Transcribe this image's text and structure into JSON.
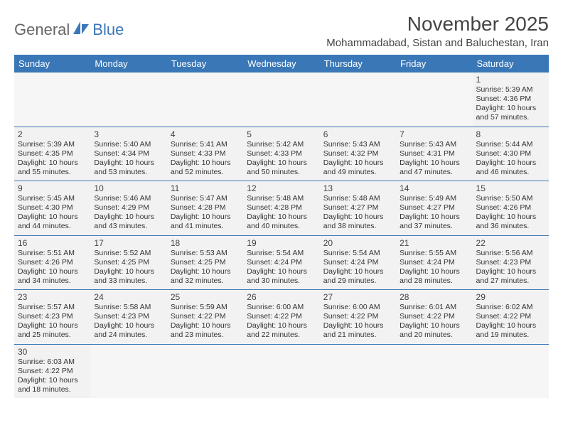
{
  "logo": {
    "general": "General",
    "blue": "Blue"
  },
  "title": "November 2025",
  "location": "Mohammadabad, Sistan and Baluchestan, Iran",
  "colors": {
    "header_bg": "#3a77b7",
    "header_text": "#ffffff",
    "cell_bg": "#f2f2f2",
    "border": "#3a77b7",
    "text": "#333333",
    "title_text": "#444444"
  },
  "weekdays": [
    "Sunday",
    "Monday",
    "Tuesday",
    "Wednesday",
    "Thursday",
    "Friday",
    "Saturday"
  ],
  "weeks": [
    [
      null,
      null,
      null,
      null,
      null,
      null,
      {
        "n": "1",
        "sunrise": "5:39 AM",
        "sunset": "4:36 PM",
        "daylight": "10 hours and 57 minutes."
      }
    ],
    [
      {
        "n": "2",
        "sunrise": "5:39 AM",
        "sunset": "4:35 PM",
        "daylight": "10 hours and 55 minutes."
      },
      {
        "n": "3",
        "sunrise": "5:40 AM",
        "sunset": "4:34 PM",
        "daylight": "10 hours and 53 minutes."
      },
      {
        "n": "4",
        "sunrise": "5:41 AM",
        "sunset": "4:33 PM",
        "daylight": "10 hours and 52 minutes."
      },
      {
        "n": "5",
        "sunrise": "5:42 AM",
        "sunset": "4:33 PM",
        "daylight": "10 hours and 50 minutes."
      },
      {
        "n": "6",
        "sunrise": "5:43 AM",
        "sunset": "4:32 PM",
        "daylight": "10 hours and 49 minutes."
      },
      {
        "n": "7",
        "sunrise": "5:43 AM",
        "sunset": "4:31 PM",
        "daylight": "10 hours and 47 minutes."
      },
      {
        "n": "8",
        "sunrise": "5:44 AM",
        "sunset": "4:30 PM",
        "daylight": "10 hours and 46 minutes."
      }
    ],
    [
      {
        "n": "9",
        "sunrise": "5:45 AM",
        "sunset": "4:30 PM",
        "daylight": "10 hours and 44 minutes."
      },
      {
        "n": "10",
        "sunrise": "5:46 AM",
        "sunset": "4:29 PM",
        "daylight": "10 hours and 43 minutes."
      },
      {
        "n": "11",
        "sunrise": "5:47 AM",
        "sunset": "4:28 PM",
        "daylight": "10 hours and 41 minutes."
      },
      {
        "n": "12",
        "sunrise": "5:48 AM",
        "sunset": "4:28 PM",
        "daylight": "10 hours and 40 minutes."
      },
      {
        "n": "13",
        "sunrise": "5:48 AM",
        "sunset": "4:27 PM",
        "daylight": "10 hours and 38 minutes."
      },
      {
        "n": "14",
        "sunrise": "5:49 AM",
        "sunset": "4:27 PM",
        "daylight": "10 hours and 37 minutes."
      },
      {
        "n": "15",
        "sunrise": "5:50 AM",
        "sunset": "4:26 PM",
        "daylight": "10 hours and 36 minutes."
      }
    ],
    [
      {
        "n": "16",
        "sunrise": "5:51 AM",
        "sunset": "4:26 PM",
        "daylight": "10 hours and 34 minutes."
      },
      {
        "n": "17",
        "sunrise": "5:52 AM",
        "sunset": "4:25 PM",
        "daylight": "10 hours and 33 minutes."
      },
      {
        "n": "18",
        "sunrise": "5:53 AM",
        "sunset": "4:25 PM",
        "daylight": "10 hours and 32 minutes."
      },
      {
        "n": "19",
        "sunrise": "5:54 AM",
        "sunset": "4:24 PM",
        "daylight": "10 hours and 30 minutes."
      },
      {
        "n": "20",
        "sunrise": "5:54 AM",
        "sunset": "4:24 PM",
        "daylight": "10 hours and 29 minutes."
      },
      {
        "n": "21",
        "sunrise": "5:55 AM",
        "sunset": "4:24 PM",
        "daylight": "10 hours and 28 minutes."
      },
      {
        "n": "22",
        "sunrise": "5:56 AM",
        "sunset": "4:23 PM",
        "daylight": "10 hours and 27 minutes."
      }
    ],
    [
      {
        "n": "23",
        "sunrise": "5:57 AM",
        "sunset": "4:23 PM",
        "daylight": "10 hours and 25 minutes."
      },
      {
        "n": "24",
        "sunrise": "5:58 AM",
        "sunset": "4:23 PM",
        "daylight": "10 hours and 24 minutes."
      },
      {
        "n": "25",
        "sunrise": "5:59 AM",
        "sunset": "4:22 PM",
        "daylight": "10 hours and 23 minutes."
      },
      {
        "n": "26",
        "sunrise": "6:00 AM",
        "sunset": "4:22 PM",
        "daylight": "10 hours and 22 minutes."
      },
      {
        "n": "27",
        "sunrise": "6:00 AM",
        "sunset": "4:22 PM",
        "daylight": "10 hours and 21 minutes."
      },
      {
        "n": "28",
        "sunrise": "6:01 AM",
        "sunset": "4:22 PM",
        "daylight": "10 hours and 20 minutes."
      },
      {
        "n": "29",
        "sunrise": "6:02 AM",
        "sunset": "4:22 PM",
        "daylight": "10 hours and 19 minutes."
      }
    ],
    [
      {
        "n": "30",
        "sunrise": "6:03 AM",
        "sunset": "4:22 PM",
        "daylight": "10 hours and 18 minutes."
      },
      null,
      null,
      null,
      null,
      null,
      null
    ]
  ],
  "labels": {
    "sunrise": "Sunrise:",
    "sunset": "Sunset:",
    "daylight": "Daylight:"
  }
}
